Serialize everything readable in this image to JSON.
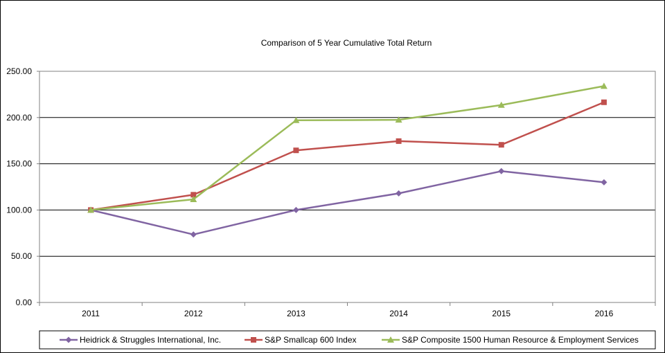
{
  "chart_data": {
    "type": "line",
    "title": "Comparison  of 5 Year Cumulative  Total Return",
    "xlabel": "",
    "ylabel": "",
    "categories": [
      "2011",
      "2012",
      "2013",
      "2014",
      "2015",
      "2016"
    ],
    "ylim": [
      0,
      250
    ],
    "y_ticks": [
      "0.00",
      "50.00",
      "100.00",
      "150.00",
      "200.00",
      "250.00"
    ],
    "y_tick_values": [
      0,
      50,
      100,
      150,
      200,
      250
    ],
    "grid": true,
    "legend_position": "bottom",
    "series": [
      {
        "name": "Heidrick & Struggles International, Inc.",
        "color": "#8064A2",
        "marker": "diamond",
        "values": [
          100.0,
          73.5,
          100.0,
          118.0,
          142.0,
          130.0
        ]
      },
      {
        "name": "S&P Smallcap 600 Index",
        "color": "#C0504D",
        "marker": "square",
        "values": [
          100.0,
          116.5,
          164.5,
          174.5,
          170.5,
          216.5
        ]
      },
      {
        "name": "S&P Composite 1500 Human Resource & Employment Services",
        "color": "#9BBB59",
        "marker": "triangle",
        "values": [
          100.0,
          111.5,
          197.0,
          197.5,
          213.5,
          234.0
        ]
      }
    ]
  }
}
